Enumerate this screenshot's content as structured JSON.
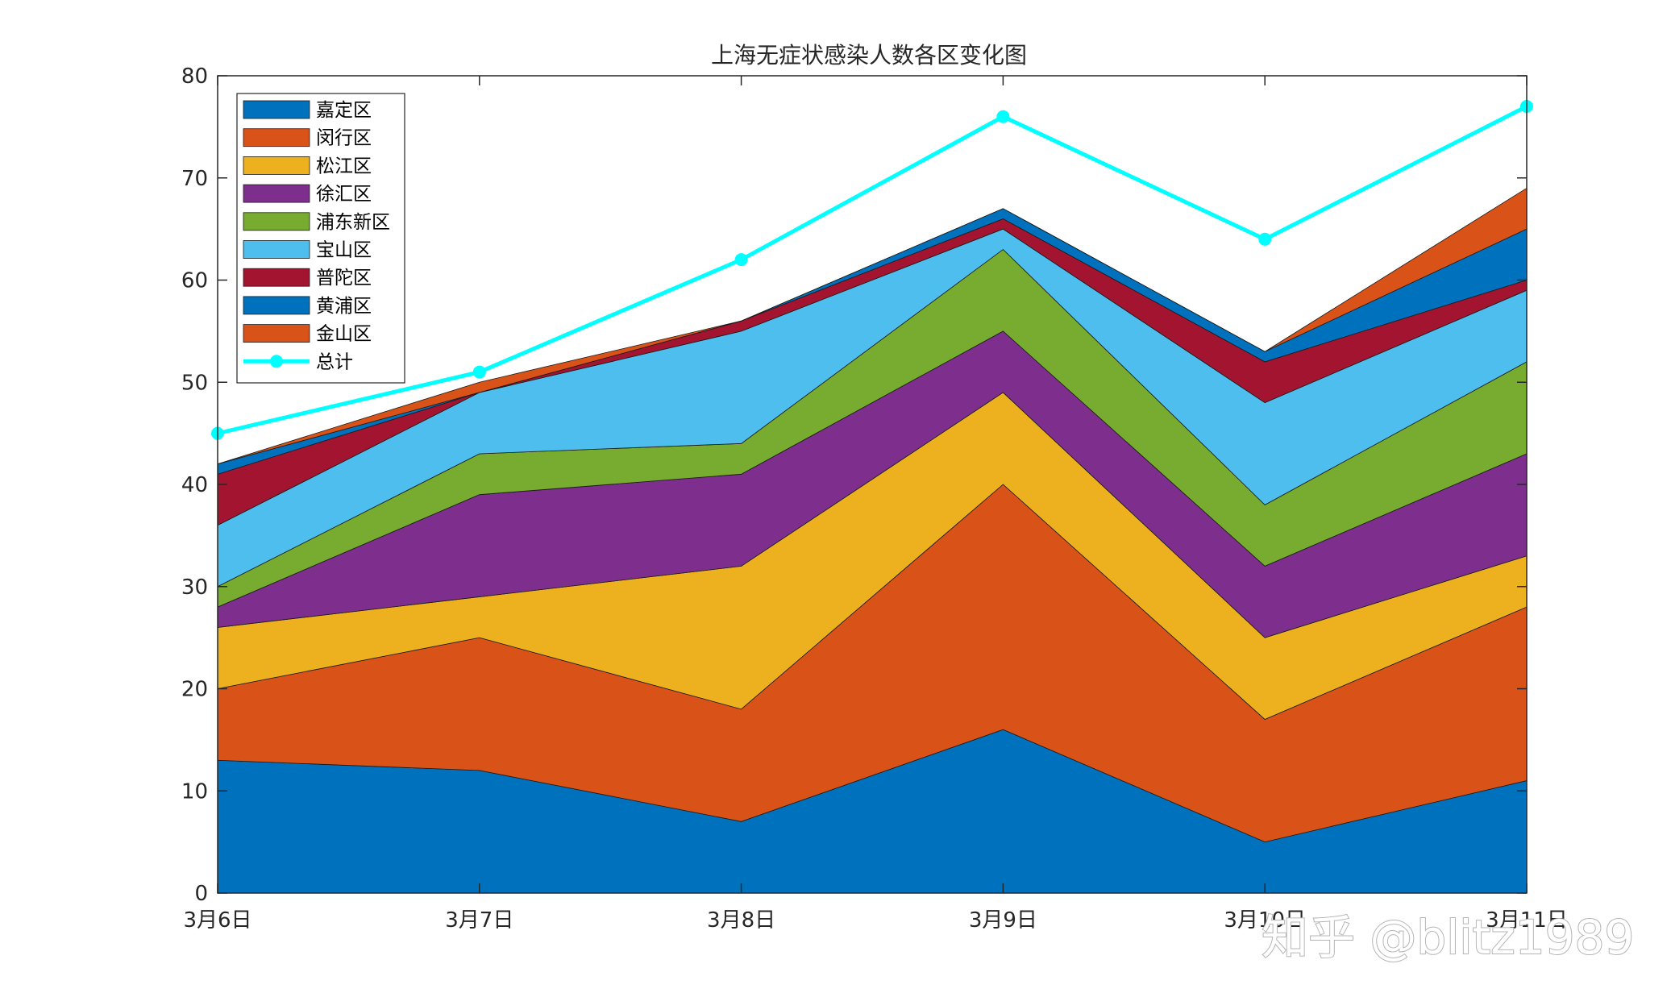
{
  "watermark": "知乎 @blitz1989",
  "chart_data": {
    "type": "area",
    "stacked": true,
    "title": "上海无症状感染人数各区变化图",
    "xlabel": "",
    "ylabel": "",
    "categories": [
      "3月6日",
      "3月7日",
      "3月8日",
      "3月9日",
      "3月10日",
      "3月11日"
    ],
    "ylim": [
      0,
      80
    ],
    "yticks": [
      0,
      10,
      20,
      30,
      40,
      50,
      60,
      70,
      80
    ],
    "grid": false,
    "legend_position": "top-left",
    "series": [
      {
        "name": "嘉定区",
        "color": "#0072BD",
        "values": [
          13,
          12,
          7,
          16,
          5,
          11
        ]
      },
      {
        "name": "闵行区",
        "color": "#D95319",
        "values": [
          7,
          13,
          11,
          24,
          12,
          17
        ]
      },
      {
        "name": "松江区",
        "color": "#EDB120",
        "values": [
          6,
          4,
          14,
          9,
          8,
          5
        ]
      },
      {
        "name": "徐汇区",
        "color": "#7E2F8E",
        "values": [
          2,
          10,
          9,
          6,
          7,
          10
        ]
      },
      {
        "name": "浦东新区",
        "color": "#77AC30",
        "values": [
          2,
          4,
          3,
          8,
          6,
          9
        ]
      },
      {
        "name": "宝山区",
        "color": "#4DBEEE",
        "values": [
          6,
          6,
          11,
          2,
          10,
          7
        ]
      },
      {
        "name": "普陀区",
        "color": "#A2142F",
        "values": [
          5,
          0,
          1,
          1,
          4,
          1
        ]
      },
      {
        "name": "黄浦区",
        "color": "#0072BD",
        "values": [
          1,
          0,
          0,
          1,
          1,
          5
        ]
      },
      {
        "name": "金山区",
        "color": "#D95319",
        "values": [
          0,
          1,
          0,
          0,
          0,
          4
        ]
      }
    ],
    "total_line": {
      "name": "总计",
      "color": "#00FFFF",
      "values": [
        45,
        51,
        62,
        76,
        64,
        77
      ]
    }
  }
}
